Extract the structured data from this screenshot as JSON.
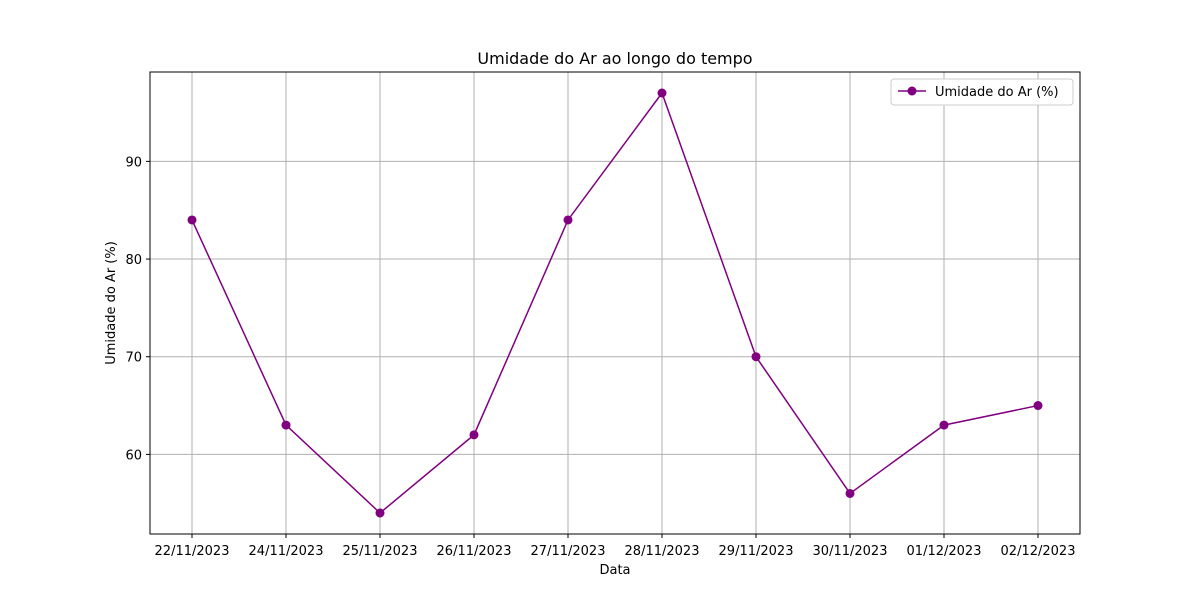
{
  "chart_data": {
    "type": "line",
    "title": "Umidade do Ar ao longo do tempo",
    "xlabel": "Data",
    "ylabel": "Umidade do Ar (%)",
    "categories": [
      "22/11/2023",
      "24/11/2023",
      "25/11/2023",
      "26/11/2023",
      "27/11/2023",
      "28/11/2023",
      "29/11/2023",
      "30/11/2023",
      "01/12/2023",
      "02/12/2023"
    ],
    "series": [
      {
        "name": "Umidade do Ar (%)",
        "values": [
          84,
          63,
          54,
          62,
          84,
          97,
          70,
          56,
          63,
          65
        ]
      }
    ],
    "ylim": [
      51.85,
      99.15
    ],
    "yticks": [
      60,
      70,
      80,
      90
    ],
    "grid": true,
    "legend_position": "top-right",
    "marker": "circle",
    "colors": {
      "series": "#800080",
      "grid": "#b0b0b0",
      "axes": "#000000"
    }
  }
}
